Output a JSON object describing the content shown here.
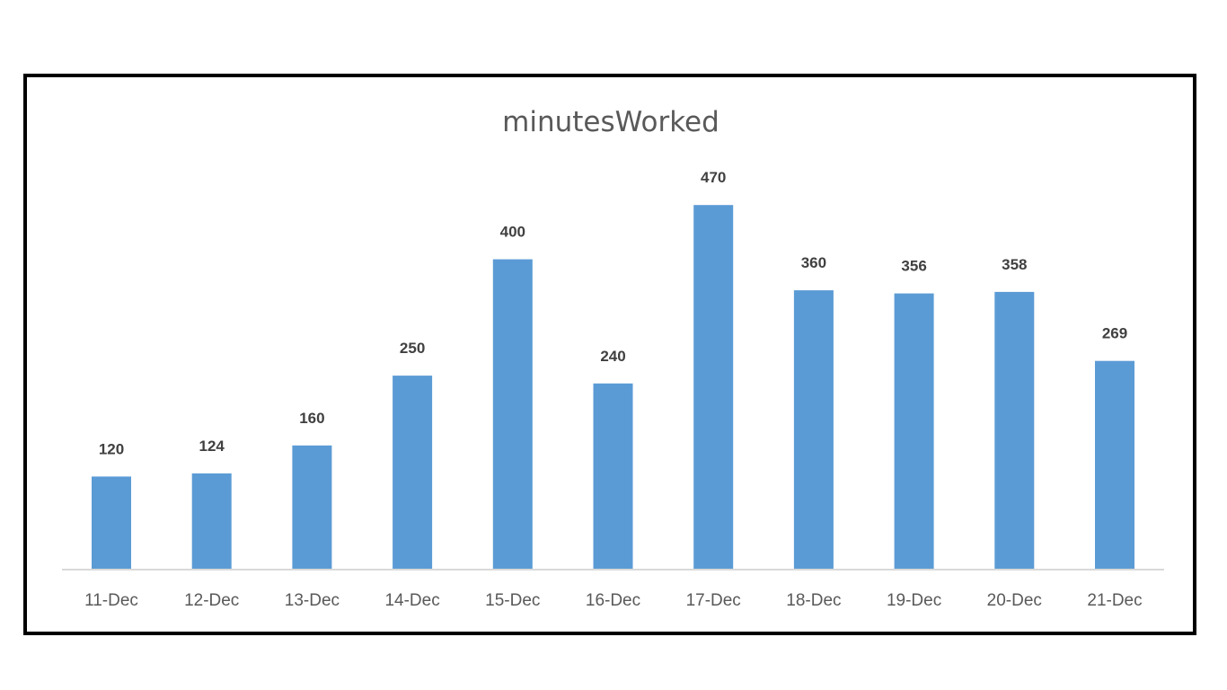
{
  "chart_data": {
    "type": "bar",
    "title": "minutesWorked",
    "categories": [
      "11-Dec",
      "12-Dec",
      "13-Dec",
      "14-Dec",
      "15-Dec",
      "16-Dec",
      "17-Dec",
      "18-Dec",
      "19-Dec",
      "20-Dec",
      "21-Dec"
    ],
    "values": [
      120,
      124,
      160,
      250,
      400,
      240,
      470,
      360,
      356,
      358,
      269
    ],
    "xlabel": "",
    "ylabel": "",
    "ylim": [
      0,
      500
    ],
    "grid": false,
    "legend": "none",
    "data_labels": true,
    "colors": {
      "bar": "#5b9bd5",
      "axis": "#d9d9d9",
      "frame": "#000000"
    }
  }
}
